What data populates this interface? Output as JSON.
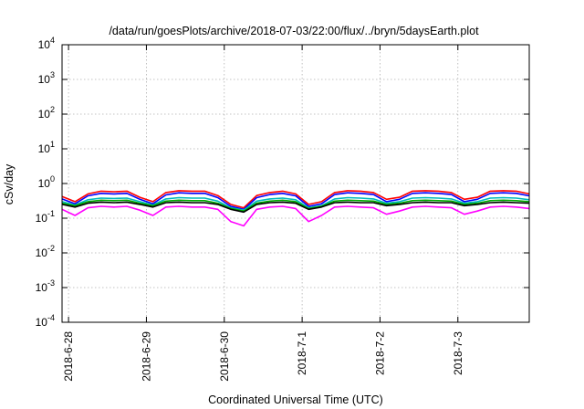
{
  "chart_data": {
    "type": "line",
    "title": "/data/run/goesPlots/archive/2018-07-03/22:00/flux/../bryn/5daysEarth.plot",
    "xlabel": "Coordinated Universal Time (UTC)",
    "ylabel": "cSv/day",
    "yscale": "log",
    "ylim": [
      0.0001,
      10000
    ],
    "xlim": [
      "2018-06-27T22:00",
      "2018-07-03T22:00"
    ],
    "grid": true,
    "x_ticks": [
      {
        "label": "2018-6-28",
        "at": "2018-06-28T00:00"
      },
      {
        "label": "2018-6-29",
        "at": "2018-06-29T00:00"
      },
      {
        "label": "2018-6-30",
        "at": "2018-06-30T00:00"
      },
      {
        "label": "2018-7-1",
        "at": "2018-07-01T00:00"
      },
      {
        "label": "2018-7-2",
        "at": "2018-07-02T00:00"
      },
      {
        "label": "2018-7-3",
        "at": "2018-07-03T00:00"
      }
    ],
    "y_ticks": [
      {
        "base": "10",
        "exp": "-4",
        "value": 0.0001
      },
      {
        "base": "10",
        "exp": "-3",
        "value": 0.001
      },
      {
        "base": "10",
        "exp": "-2",
        "value": 0.01
      },
      {
        "base": "10",
        "exp": "-1",
        "value": 0.1
      },
      {
        "base": "10",
        "exp": "0",
        "value": 1
      },
      {
        "base": "10",
        "exp": "1",
        "value": 10
      },
      {
        "base": "10",
        "exp": "2",
        "value": 100
      },
      {
        "base": "10",
        "exp": "3",
        "value": 1000
      },
      {
        "base": "10",
        "exp": "4",
        "value": 10000
      }
    ],
    "x": [
      "2018-06-27T22:00",
      "2018-06-28T02:00",
      "2018-06-28T06:00",
      "2018-06-28T10:00",
      "2018-06-28T14:00",
      "2018-06-28T18:00",
      "2018-06-28T22:00",
      "2018-06-29T02:00",
      "2018-06-29T06:00",
      "2018-06-29T10:00",
      "2018-06-29T14:00",
      "2018-06-29T18:00",
      "2018-06-29T22:00",
      "2018-06-30T02:00",
      "2018-06-30T06:00",
      "2018-06-30T10:00",
      "2018-06-30T14:00",
      "2018-06-30T18:00",
      "2018-06-30T22:00",
      "2018-07-01T02:00",
      "2018-07-01T06:00",
      "2018-07-01T10:00",
      "2018-07-01T14:00",
      "2018-07-01T18:00",
      "2018-07-01T22:00",
      "2018-07-02T02:00",
      "2018-07-02T06:00",
      "2018-07-02T10:00",
      "2018-07-02T14:00",
      "2018-07-02T18:00",
      "2018-07-02T22:00",
      "2018-07-03T02:00",
      "2018-07-03T06:00",
      "2018-07-03T10:00",
      "2018-07-03T14:00",
      "2018-07-03T18:00",
      "2018-07-03T22:00"
    ],
    "series": [
      {
        "color": "#ff0000",
        "values": [
          0.42,
          0.3,
          0.5,
          0.6,
          0.58,
          0.6,
          0.4,
          0.3,
          0.55,
          0.62,
          0.6,
          0.6,
          0.45,
          0.25,
          0.2,
          0.45,
          0.55,
          0.6,
          0.5,
          0.25,
          0.3,
          0.55,
          0.62,
          0.6,
          0.55,
          0.35,
          0.4,
          0.6,
          0.62,
          0.6,
          0.55,
          0.35,
          0.4,
          0.6,
          0.62,
          0.6,
          0.5
        ]
      },
      {
        "color": "#0000ff",
        "values": [
          0.36,
          0.26,
          0.44,
          0.52,
          0.5,
          0.52,
          0.35,
          0.26,
          0.47,
          0.54,
          0.52,
          0.52,
          0.39,
          0.22,
          0.18,
          0.39,
          0.48,
          0.52,
          0.44,
          0.22,
          0.26,
          0.48,
          0.54,
          0.52,
          0.48,
          0.3,
          0.35,
          0.52,
          0.54,
          0.52,
          0.48,
          0.3,
          0.35,
          0.52,
          0.54,
          0.52,
          0.44
        ]
      },
      {
        "color": "#00bbbb",
        "values": [
          0.3,
          0.24,
          0.34,
          0.38,
          0.37,
          0.38,
          0.3,
          0.24,
          0.36,
          0.39,
          0.38,
          0.38,
          0.31,
          0.2,
          0.17,
          0.31,
          0.36,
          0.38,
          0.34,
          0.2,
          0.23,
          0.36,
          0.39,
          0.38,
          0.36,
          0.27,
          0.3,
          0.38,
          0.39,
          0.38,
          0.36,
          0.27,
          0.3,
          0.38,
          0.39,
          0.38,
          0.34
        ]
      },
      {
        "color": "#00aa00",
        "values": [
          0.27,
          0.23,
          0.3,
          0.33,
          0.32,
          0.33,
          0.27,
          0.23,
          0.31,
          0.33,
          0.32,
          0.32,
          0.27,
          0.19,
          0.16,
          0.27,
          0.31,
          0.33,
          0.3,
          0.19,
          0.22,
          0.31,
          0.33,
          0.32,
          0.31,
          0.25,
          0.27,
          0.32,
          0.33,
          0.32,
          0.31,
          0.25,
          0.27,
          0.32,
          0.33,
          0.32,
          0.3
        ]
      },
      {
        "color": "#000000",
        "values": [
          0.25,
          0.21,
          0.27,
          0.29,
          0.28,
          0.29,
          0.25,
          0.21,
          0.28,
          0.29,
          0.28,
          0.28,
          0.25,
          0.18,
          0.15,
          0.25,
          0.28,
          0.29,
          0.27,
          0.18,
          0.21,
          0.28,
          0.29,
          0.28,
          0.28,
          0.23,
          0.25,
          0.28,
          0.29,
          0.28,
          0.28,
          0.23,
          0.25,
          0.28,
          0.29,
          0.28,
          0.27
        ]
      },
      {
        "color": "#ff00ff",
        "values": [
          0.18,
          0.12,
          0.2,
          0.22,
          0.21,
          0.22,
          0.17,
          0.12,
          0.21,
          0.22,
          0.21,
          0.21,
          0.18,
          0.08,
          0.06,
          0.18,
          0.21,
          0.22,
          0.19,
          0.08,
          0.12,
          0.21,
          0.22,
          0.21,
          0.2,
          0.13,
          0.16,
          0.21,
          0.22,
          0.21,
          0.2,
          0.13,
          0.16,
          0.21,
          0.22,
          0.21,
          0.19
        ]
      }
    ]
  }
}
